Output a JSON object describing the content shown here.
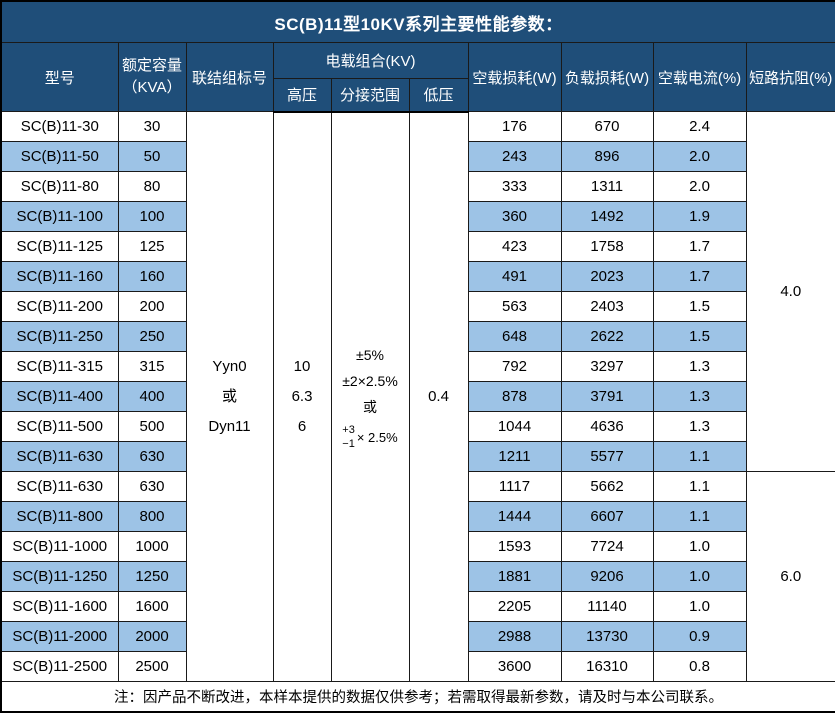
{
  "title": "SC(B)11型10KV系列主要性能参数：",
  "colors": {
    "header_bg": "#1F4E79",
    "stripe_bg": "#9DC3E6"
  },
  "columns": {
    "model": "型号",
    "capacity_line1": "额定容量",
    "capacity_line2": "（KVA）",
    "connection": "联结组标号",
    "voltage_combo": "电载组合(KV)",
    "hv": "高压",
    "tap_range": "分接范围",
    "lv": "低压",
    "no_load_loss": "空载损耗(W)",
    "load_loss": "负载损耗(W)",
    "no_load_current": "空载电流(%)",
    "impedance": "短路抗阻(%)"
  },
  "shared": {
    "connection_lines": [
      "Yyn0",
      "或",
      "Dyn11"
    ],
    "hv_lines": [
      "10",
      "6.3",
      "6"
    ],
    "tap_lines": [
      "±5%",
      "±2×2.5%",
      "或"
    ],
    "tap_stack_top": "+3",
    "tap_stack_bottom": "−1",
    "tap_stack_suffix": "× 2.5%",
    "lv": "0.4",
    "impedance_group1": "4.0",
    "impedance_group2": "6.0"
  },
  "rows": [
    {
      "model": "SC(B)11-30",
      "capacity": "30",
      "no_load_loss": "176",
      "load_loss": "670",
      "no_load_current": "2.4"
    },
    {
      "model": "SC(B)11-50",
      "capacity": "50",
      "no_load_loss": "243",
      "load_loss": "896",
      "no_load_current": "2.0"
    },
    {
      "model": "SC(B)11-80",
      "capacity": "80",
      "no_load_loss": "333",
      "load_loss": "1311",
      "no_load_current": "2.0"
    },
    {
      "model": "SC(B)11-100",
      "capacity": "100",
      "no_load_loss": "360",
      "load_loss": "1492",
      "no_load_current": "1.9"
    },
    {
      "model": "SC(B)11-125",
      "capacity": "125",
      "no_load_loss": "423",
      "load_loss": "1758",
      "no_load_current": "1.7"
    },
    {
      "model": "SC(B)11-160",
      "capacity": "160",
      "no_load_loss": "491",
      "load_loss": "2023",
      "no_load_current": "1.7"
    },
    {
      "model": "SC(B)11-200",
      "capacity": "200",
      "no_load_loss": "563",
      "load_loss": "2403",
      "no_load_current": "1.5"
    },
    {
      "model": "SC(B)11-250",
      "capacity": "250",
      "no_load_loss": "648",
      "load_loss": "2622",
      "no_load_current": "1.5"
    },
    {
      "model": "SC(B)11-315",
      "capacity": "315",
      "no_load_loss": "792",
      "load_loss": "3297",
      "no_load_current": "1.3"
    },
    {
      "model": "SC(B)11-400",
      "capacity": "400",
      "no_load_loss": "878",
      "load_loss": "3791",
      "no_load_current": "1.3"
    },
    {
      "model": "SC(B)11-500",
      "capacity": "500",
      "no_load_loss": "1044",
      "load_loss": "4636",
      "no_load_current": "1.3"
    },
    {
      "model": "SC(B)11-630",
      "capacity": "630",
      "no_load_loss": "1211",
      "load_loss": "5577",
      "no_load_current": "1.1"
    },
    {
      "model": "SC(B)11-630",
      "capacity": "630",
      "no_load_loss": "1117",
      "load_loss": "5662",
      "no_load_current": "1.1"
    },
    {
      "model": "SC(B)11-800",
      "capacity": "800",
      "no_load_loss": "1444",
      "load_loss": "6607",
      "no_load_current": "1.1"
    },
    {
      "model": "SC(B)11-1000",
      "capacity": "1000",
      "no_load_loss": "1593",
      "load_loss": "7724",
      "no_load_current": "1.0"
    },
    {
      "model": "SC(B)11-1250",
      "capacity": "1250",
      "no_load_loss": "1881",
      "load_loss": "9206",
      "no_load_current": "1.0"
    },
    {
      "model": "SC(B)11-1600",
      "capacity": "1600",
      "no_load_loss": "2205",
      "load_loss": "11140",
      "no_load_current": "1.0"
    },
    {
      "model": "SC(B)11-2000",
      "capacity": "2000",
      "no_load_loss": "2988",
      "load_loss": "13730",
      "no_load_current": "0.9"
    },
    {
      "model": "SC(B)11-2500",
      "capacity": "2500",
      "no_load_loss": "3600",
      "load_loss": "16310",
      "no_load_current": "0.8"
    }
  ],
  "footer": "注：因产品不断改进，本样本提供的数据仅供参考；若需取得最新参数，请及时与本公司联系。"
}
